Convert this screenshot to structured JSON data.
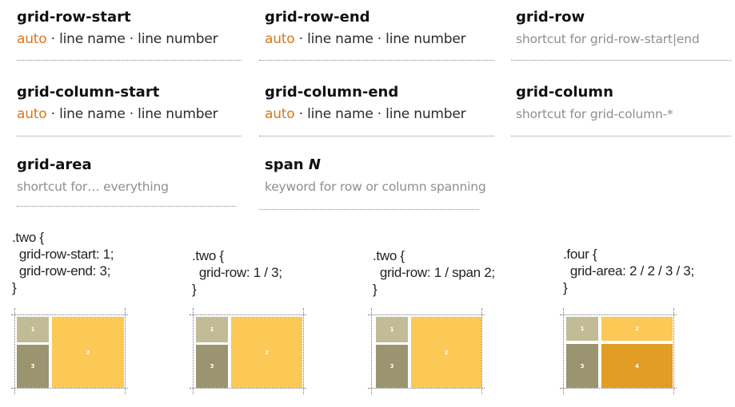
{
  "properties": [
    {
      "name": "grid-row-start",
      "auto": "auto",
      "rest": " · line name · line number"
    },
    {
      "name": "grid-row-end",
      "auto": "auto",
      "rest": " · line name · line number"
    },
    {
      "name": "grid-row",
      "desc": "shortcut for grid-row-start|end"
    },
    {
      "name": "grid-column-start",
      "auto": "auto",
      "rest": " · line name · line number"
    },
    {
      "name": "grid-column-end",
      "auto": "auto",
      "rest": " · line name · line number"
    },
    {
      "name": "grid-column",
      "desc": "shortcut for grid-column-*"
    },
    {
      "name": "grid-area",
      "desc": "shortcut for… everything"
    },
    {
      "name_bold": "span ",
      "name_italic": "N",
      "desc": "keyword for row or column spanning"
    }
  ],
  "examples": [
    {
      "code": ".two {\n  grid-row-start: 1;\n  grid-row-end: 3;\n}",
      "cells": [
        "1",
        "2",
        "3"
      ]
    },
    {
      "code": ".two {\n  grid-row: 1 / 3;\n}",
      "cells": [
        "1",
        "2",
        "3"
      ]
    },
    {
      "code": ".two {\n  grid-row: 1 / span 2;\n}",
      "cells": [
        "1",
        "2",
        "3"
      ]
    },
    {
      "code": ".four {\n  grid-area: 2 / 2 / 3 / 3;\n}",
      "cells": [
        "1",
        "2",
        "3",
        "4"
      ]
    }
  ]
}
